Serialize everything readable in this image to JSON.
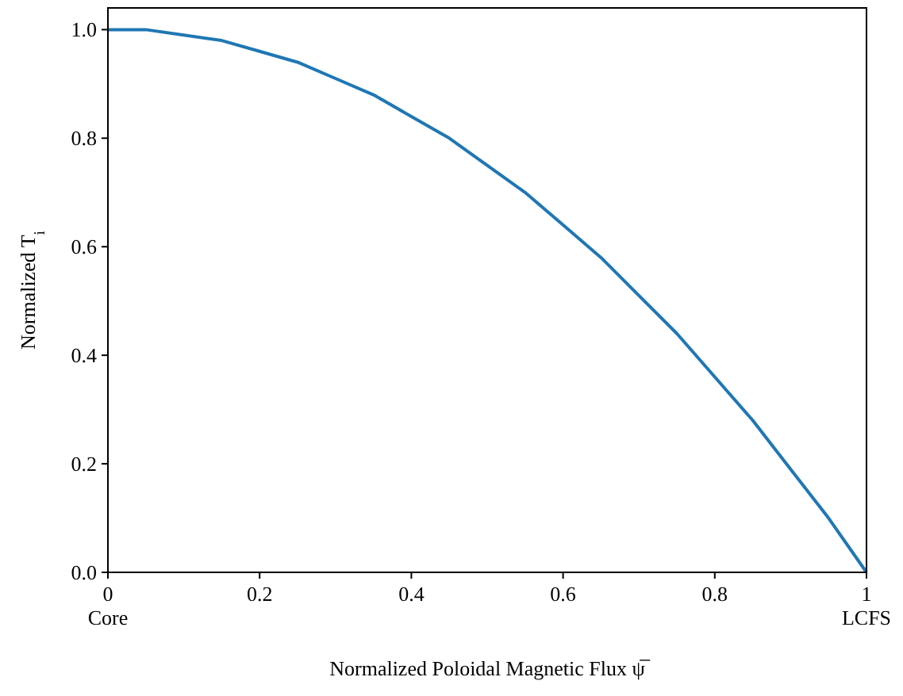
{
  "chart_data": {
    "type": "line",
    "xlabel": "Normalized Poloidal Magnetic Flux ψ̅",
    "ylabel": "Normalized T$_{i}$",
    "x": [
      0,
      0.05,
      0.1,
      0.15,
      0.2,
      0.25,
      0.3,
      0.35,
      0.4,
      0.45,
      0.5,
      0.55,
      0.6,
      0.65,
      0.7,
      0.75,
      0.8,
      0.85,
      0.9,
      0.95,
      1
    ],
    "series": [
      {
        "color": "#1f77b4",
        "values": [
          1,
          1,
          0.99,
          0.98,
          0.96,
          0.94,
          0.91,
          0.88,
          0.84,
          0.8,
          0.75,
          0.7,
          0.64,
          0.58,
          0.51,
          0.44,
          0.36,
          0.28,
          0.19,
          0.1,
          0
        ]
      }
    ],
    "xlim": [
      0,
      1
    ],
    "ylim": [
      0,
      1.04
    ],
    "xticks": [
      {
        "value": 0,
        "label": "0\nCore"
      },
      0.2,
      0.4,
      0.6,
      0.8,
      {
        "value": 1,
        "label": "1\nLCFS"
      }
    ],
    "yticks": [
      {
        "value": 0,
        "label": "0.0"
      },
      {
        "value": 0.2,
        "label": "0.2"
      },
      {
        "value": 0.4,
        "label": "0.4"
      },
      {
        "value": 0.6,
        "label": "0.6"
      },
      {
        "value": 0.8,
        "label": "0.8"
      },
      {
        "value": 1,
        "label": "1.0"
      }
    ],
    "grid": false,
    "marker": "none",
    "line_style": "solid"
  }
}
